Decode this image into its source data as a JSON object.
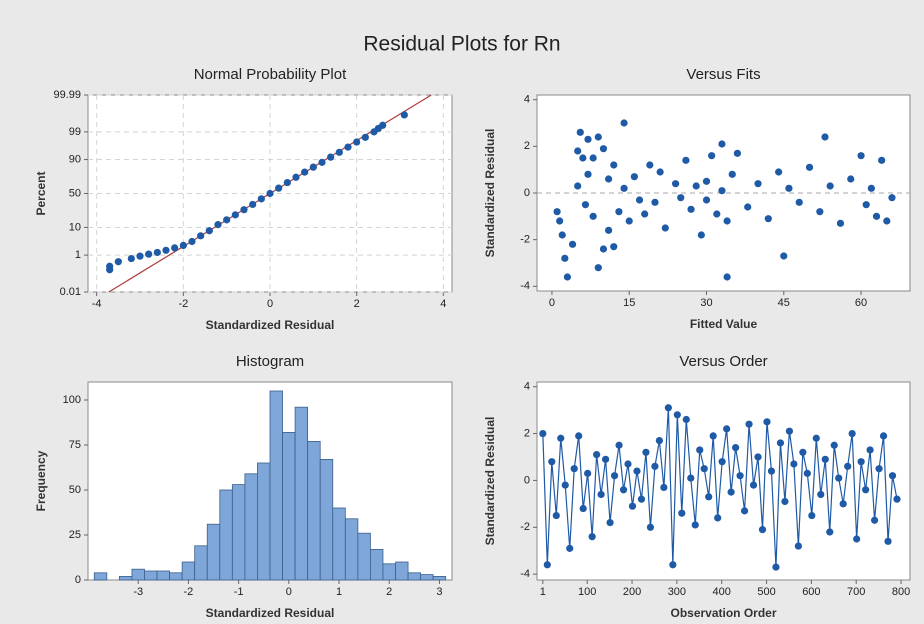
{
  "title": "Residual Plots for Rn",
  "chart_data": [
    {
      "type": "probability",
      "title": "Normal Probability Plot",
      "xlabel": "Standardized Residual",
      "ylabel": "Percent",
      "y_scale": "probability",
      "grid": true,
      "color": "#1f5aa6",
      "line_color": "#b03a3a",
      "xlim": [
        -4.2,
        4.2
      ],
      "xticks": [
        -4,
        -2,
        0,
        2,
        4
      ],
      "ylim": [
        0.01,
        99.99
      ],
      "yticks": [
        0.01,
        1,
        10,
        50,
        90,
        99,
        99.99
      ],
      "x": [
        -3.7,
        -3.7,
        -3.5,
        -3.2,
        -3,
        -2.8,
        -2.6,
        -2.4,
        -2.2,
        -2,
        -1.8,
        -1.6,
        -1.4,
        -1.2,
        -1,
        -0.8,
        -0.6,
        -0.4,
        -0.2,
        0,
        0.2,
        0.4,
        0.6,
        0.8,
        1,
        1.2,
        1.4,
        1.6,
        1.8,
        2,
        2.2,
        2.4,
        2.5,
        2.6,
        3.1
      ],
      "values": [
        0.2,
        0.3,
        0.5,
        0.7,
        0.9,
        1.1,
        1.3,
        1.6,
        2.0,
        2.5,
        3.5,
        5.5,
        8,
        12,
        16,
        21,
        27,
        34,
        42,
        50,
        58,
        66,
        73,
        79,
        84,
        88,
        91.5,
        94,
        96,
        97.4,
        98.3,
        99,
        99.3,
        99.5,
        99.85
      ],
      "fit_line": {
        "x": [
          -3.72,
          3.72
        ],
        "values": [
          0.01,
          99.99
        ]
      }
    },
    {
      "type": "scatter",
      "title": "Versus Fits",
      "xlabel": "Fitted Value",
      "ylabel": "Standardized Residual",
      "grid": false,
      "color": "#1f5aa6",
      "reference_line": 0,
      "xlim": [
        -2.9,
        69.5
      ],
      "xticks": [
        0,
        15,
        30,
        45,
        60
      ],
      "ylim": [
        -4.2,
        4.2
      ],
      "yticks": [
        -4,
        -2,
        0,
        2,
        4
      ],
      "x": [
        1,
        1.5,
        2,
        2.5,
        3,
        4,
        5,
        5,
        5.5,
        6,
        6.5,
        7,
        7,
        8,
        8,
        9,
        9,
        10,
        10,
        11,
        11,
        12,
        12,
        13,
        14,
        14,
        15,
        16,
        17,
        18,
        19,
        20,
        21,
        22,
        24,
        25,
        26,
        27,
        28,
        29,
        30,
        30,
        31,
        32,
        33,
        33,
        34,
        34,
        35,
        36,
        38,
        40,
        42,
        44,
        45,
        46,
        48,
        50,
        52,
        53,
        54,
        56,
        58,
        60,
        61,
        62,
        63,
        64,
        65,
        66
      ],
      "values": [
        -0.8,
        -1.2,
        -1.8,
        -2.8,
        -3.6,
        -2.2,
        0.3,
        1.8,
        2.6,
        1.5,
        -0.5,
        0.8,
        2.3,
        -1,
        1.5,
        -3.2,
        2.4,
        -2.4,
        1.9,
        -1.6,
        0.6,
        -2.3,
        1.2,
        -0.8,
        3.0,
        0.2,
        -1.2,
        0.7,
        -0.3,
        -0.9,
        1.2,
        -0.4,
        0.9,
        -1.5,
        0.4,
        -0.2,
        1.4,
        -0.7,
        0.3,
        -1.8,
        0.5,
        -0.3,
        1.6,
        -0.9,
        2.1,
        0.1,
        -3.6,
        -1.2,
        0.8,
        1.7,
        -0.6,
        0.4,
        -1.1,
        0.9,
        -2.7,
        0.2,
        -0.4,
        1.1,
        -0.8,
        2.4,
        0.3,
        -1.3,
        0.6,
        1.6,
        -0.5,
        0.2,
        -1.0,
        1.4,
        -1.2,
        -0.2
      ]
    },
    {
      "type": "histogram",
      "title": "Histogram",
      "xlabel": "Standardized Residual",
      "ylabel": "Frequency",
      "grid": false,
      "color": "#7ea6d8",
      "edge_color": "#3c5f8f",
      "xlim": [
        -4.0,
        3.25
      ],
      "xticks": [
        -3,
        -2,
        -1,
        0,
        1,
        2,
        3
      ],
      "ylim": [
        0,
        110
      ],
      "yticks": [
        0,
        25,
        50,
        75,
        100
      ],
      "bins": [
        -3.875,
        -3.625,
        -3.375,
        -3.125,
        -2.875,
        -2.625,
        -2.375,
        -2.125,
        -1.875,
        -1.625,
        -1.375,
        -1.125,
        -0.875,
        -0.625,
        -0.375,
        -0.125,
        0.125,
        0.375,
        0.625,
        0.875,
        1.125,
        1.375,
        1.625,
        1.875,
        2.125,
        2.375,
        2.625,
        2.875,
        3.125
      ],
      "counts": [
        4,
        0,
        2,
        6,
        5,
        5,
        4,
        10,
        19,
        31,
        50,
        53,
        59,
        65,
        105,
        82,
        96,
        77,
        67,
        40,
        34,
        26,
        17,
        9,
        10,
        4,
        3,
        2
      ]
    },
    {
      "type": "line",
      "title": "Versus Order",
      "xlabel": "Observation Order",
      "ylabel": "Standardized Residual",
      "grid": false,
      "color": "#1f5aa6",
      "xlim": [
        -12,
        820
      ],
      "xticks": [
        1,
        100,
        200,
        300,
        400,
        500,
        600,
        700,
        800
      ],
      "ylim": [
        -4.25,
        4.2
      ],
      "yticks": [
        -4,
        -2,
        0,
        2,
        4
      ],
      "x": [
        1,
        11,
        21,
        31,
        41,
        51,
        61,
        71,
        81,
        91,
        101,
        111,
        121,
        131,
        141,
        151,
        161,
        171,
        181,
        191,
        201,
        211,
        221,
        231,
        241,
        251,
        261,
        271,
        281,
        291,
        301,
        311,
        321,
        331,
        341,
        351,
        361,
        371,
        381,
        391,
        401,
        411,
        421,
        431,
        441,
        451,
        461,
        471,
        481,
        491,
        501,
        511,
        521,
        531,
        541,
        551,
        561,
        571,
        581,
        591,
        601,
        611,
        621,
        631,
        641,
        651,
        661,
        671,
        681,
        691,
        701,
        711,
        721,
        731,
        741,
        751,
        761,
        771,
        781,
        791
      ],
      "values": [
        2.0,
        -3.6,
        0.8,
        -1.5,
        1.8,
        -0.2,
        -2.9,
        0.5,
        1.9,
        -1.2,
        0.3,
        -2.4,
        1.1,
        -0.6,
        0.9,
        -1.8,
        0.2,
        1.5,
        -0.4,
        0.7,
        -1.1,
        0.4,
        -0.8,
        1.2,
        -2.0,
        0.6,
        1.7,
        -0.3,
        3.1,
        -3.6,
        2.8,
        -1.4,
        2.6,
        0.1,
        -1.9,
        1.3,
        0.5,
        -0.7,
        1.9,
        -1.6,
        0.8,
        2.2,
        -0.5,
        1.4,
        0.2,
        -1.3,
        2.4,
        -0.2,
        1.0,
        -2.1,
        2.5,
        0.4,
        -3.7,
        1.6,
        -0.9,
        2.1,
        0.7,
        -2.8,
        1.2,
        0.3,
        -1.5,
        1.8,
        -0.6,
        0.9,
        -2.2,
        1.5,
        0.1,
        -1.0,
        0.6,
        2.0,
        -2.5,
        0.8,
        -0.4,
        1.3,
        -1.7,
        0.5,
        1.9,
        -2.6,
        0.2,
        -0.8
      ]
    }
  ]
}
